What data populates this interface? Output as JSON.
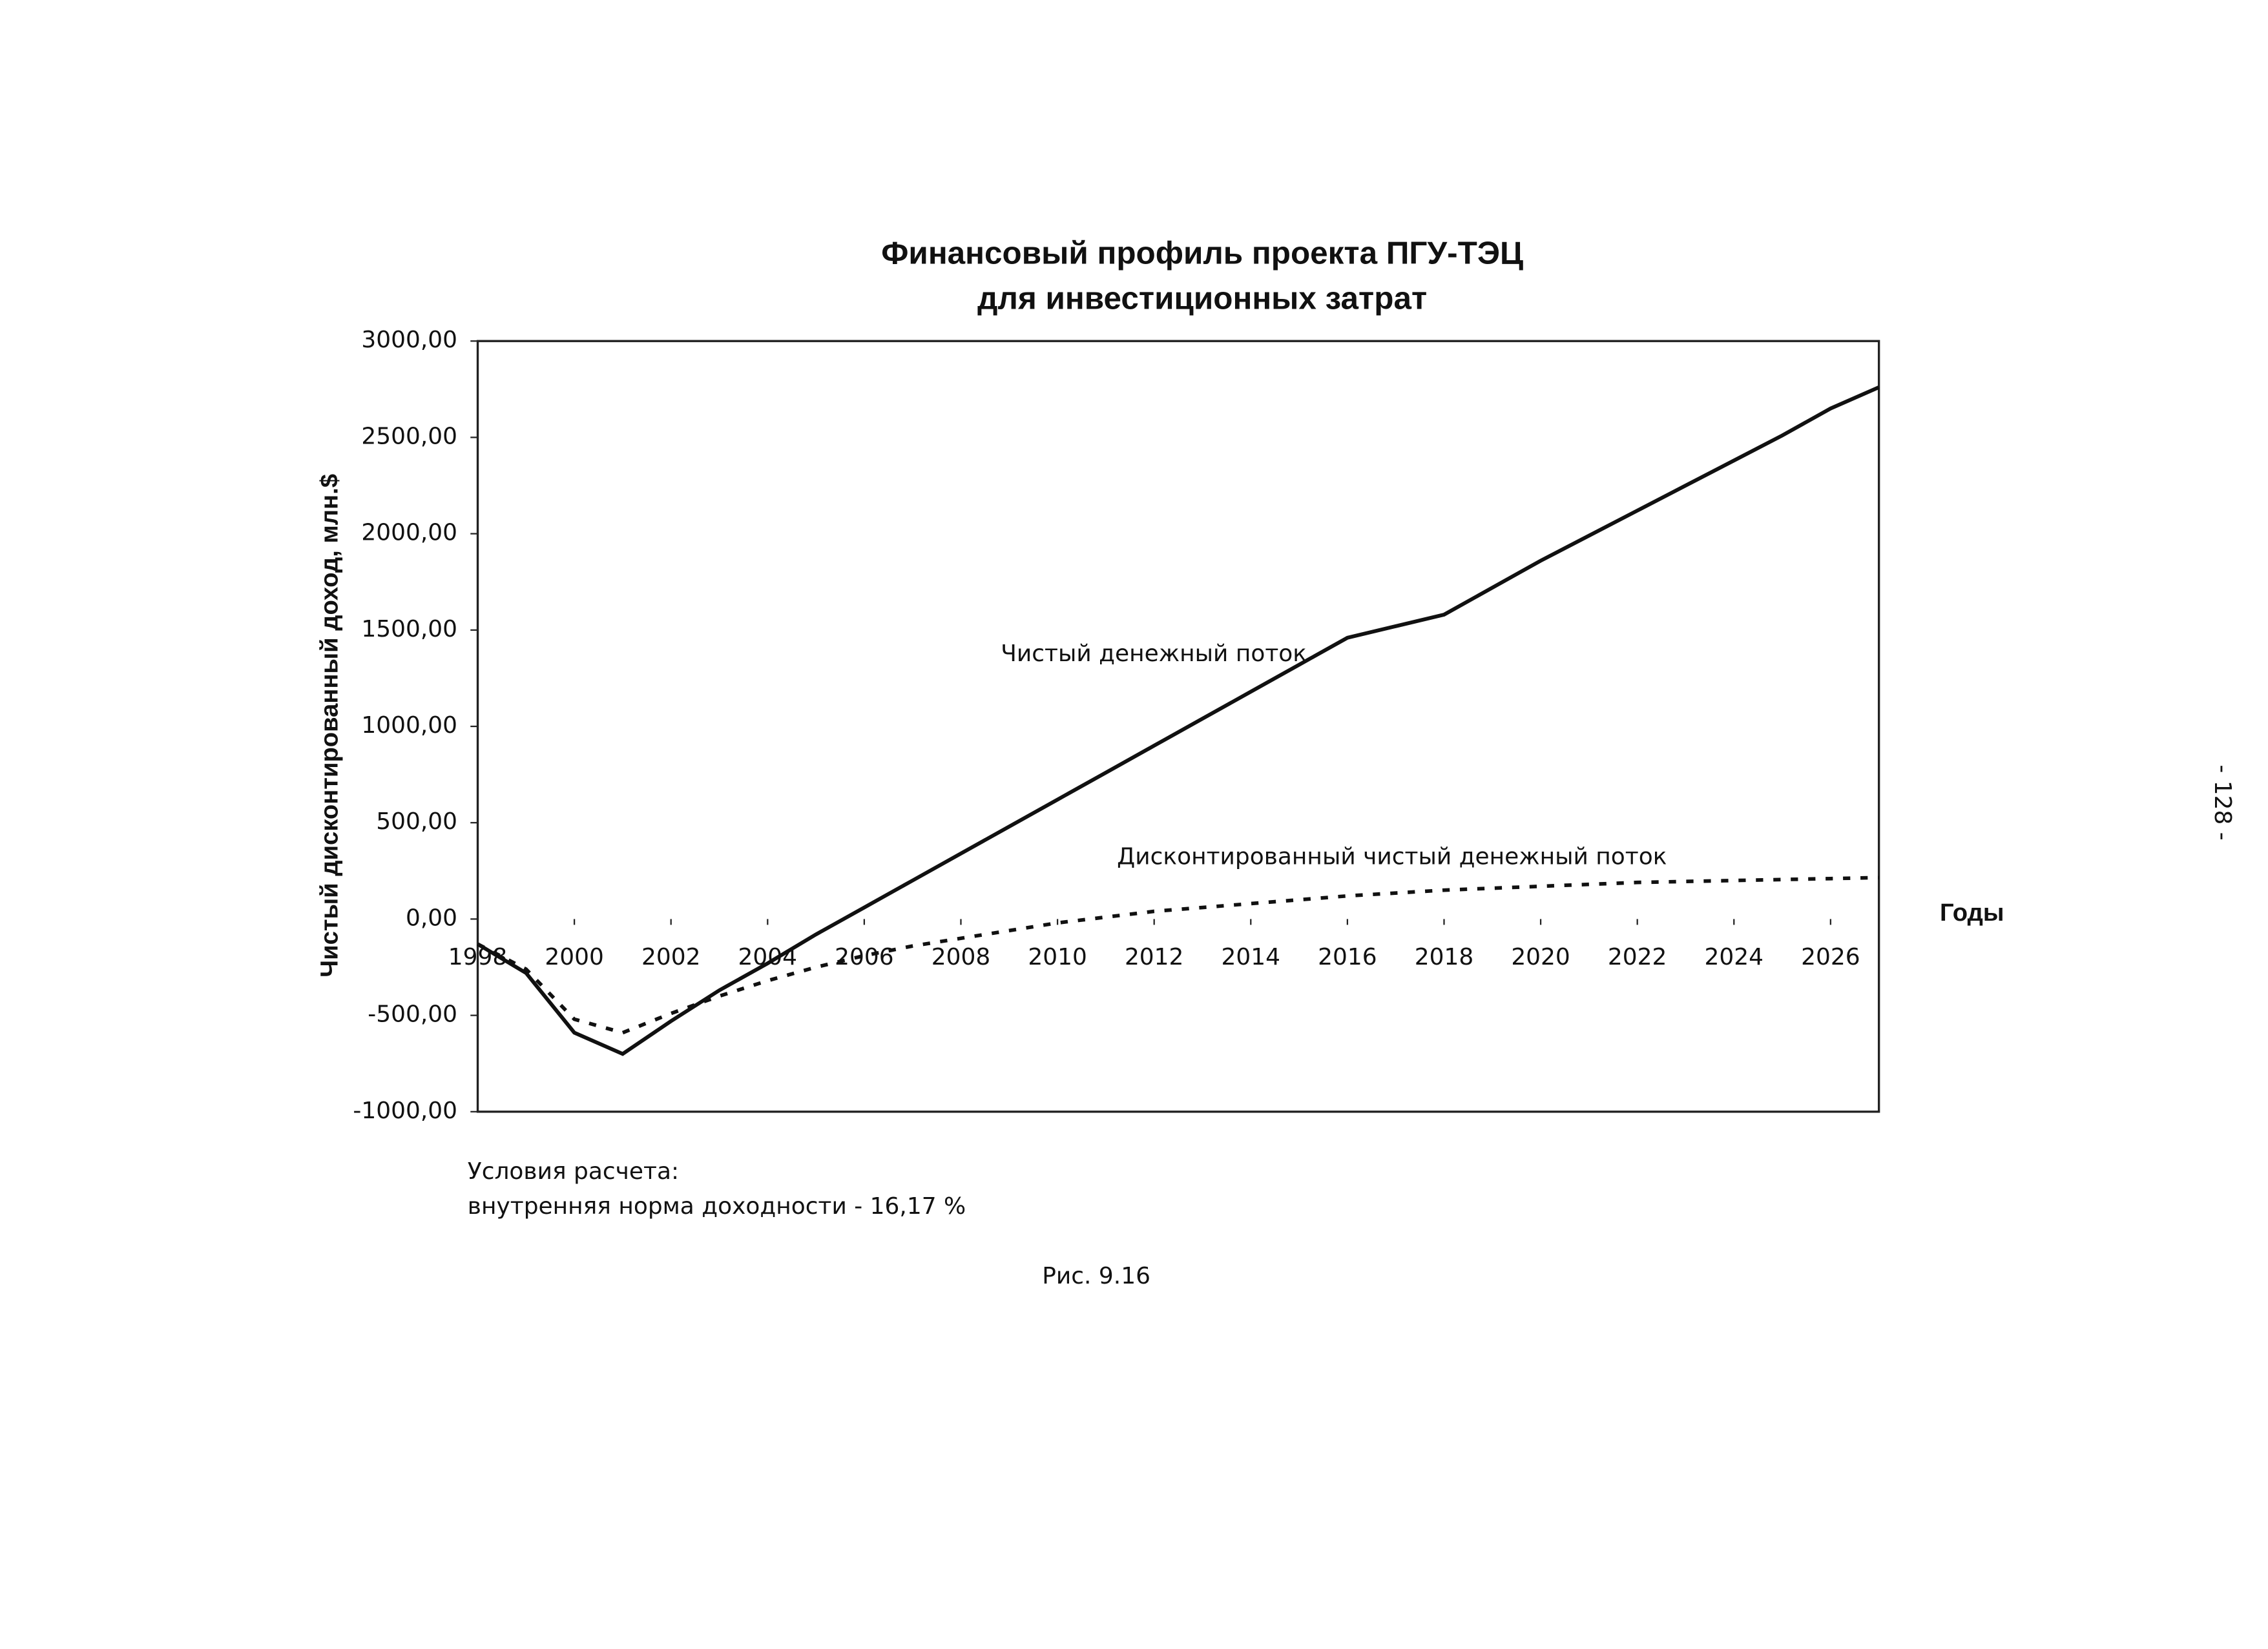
{
  "chart_data": {
    "type": "line",
    "title": "Финансовый профиль проекта ПГУ-ТЭЦ",
    "subtitle": "для инвестиционных затрат",
    "y_label": "Чистый дисконтированный доход, млн.$",
    "x_label": "Годы",
    "x": [
      1998,
      1999,
      2000,
      2001,
      2002,
      2003,
      2004,
      2005,
      2006,
      2007,
      2008,
      2009,
      2010,
      2011,
      2012,
      2013,
      2014,
      2015,
      2016,
      2017,
      2018,
      2019,
      2020,
      2021,
      2022,
      2023,
      2024,
      2025,
      2026,
      2027
    ],
    "series": [
      {
        "name": "Чистый денежный поток",
        "color": "#111111",
        "dash": false,
        "values": [
          -130,
          -280,
          -590,
          -700,
          -530,
          -370,
          -230,
          -80,
          60,
          200,
          340,
          480,
          620,
          760,
          900,
          1040,
          1180,
          1320,
          1460,
          1520,
          1580,
          1720,
          1860,
          1990,
          2120,
          2250,
          2380,
          2510,
          2650,
          2760
        ]
      },
      {
        "name": "Дисконтированный  чистый денежный  поток",
        "color": "#111111",
        "dash": true,
        "values": [
          -130,
          -260,
          -520,
          -590,
          -490,
          -400,
          -320,
          -250,
          -190,
          -140,
          -100,
          -60,
          -20,
          10,
          40,
          60,
          80,
          100,
          120,
          135,
          150,
          160,
          170,
          180,
          190,
          195,
          200,
          205,
          210,
          215
        ]
      }
    ],
    "xlim": [
      1998,
      2027
    ],
    "xticks": [
      1998,
      2000,
      2002,
      2004,
      2006,
      2008,
      2010,
      2012,
      2014,
      2016,
      2018,
      2020,
      2022,
      2024,
      2026
    ],
    "ylim": [
      -1000,
      3000
    ],
    "yticks": [
      {
        "value": -1000,
        "label": "-1000,00"
      },
      {
        "value": -500,
        "label": "-500,00"
      },
      {
        "value": 0,
        "label": "0,00"
      },
      {
        "value": 500,
        "label": "500,00"
      },
      {
        "value": 1000,
        "label": "1000,00"
      },
      {
        "value": 1500,
        "label": "1500,00"
      },
      {
        "value": 2000,
        "label": "2000,00"
      },
      {
        "value": 2500,
        "label": "2500,00"
      },
      {
        "value": 3000,
        "label": "3000,00"
      }
    ],
    "grid": false
  },
  "notes": [
    "Условия расчета:",
    "внутренняя норма доходности -  16,17 %"
  ],
  "caption": "Рис. 9.16",
  "page_number": "- 128 -"
}
